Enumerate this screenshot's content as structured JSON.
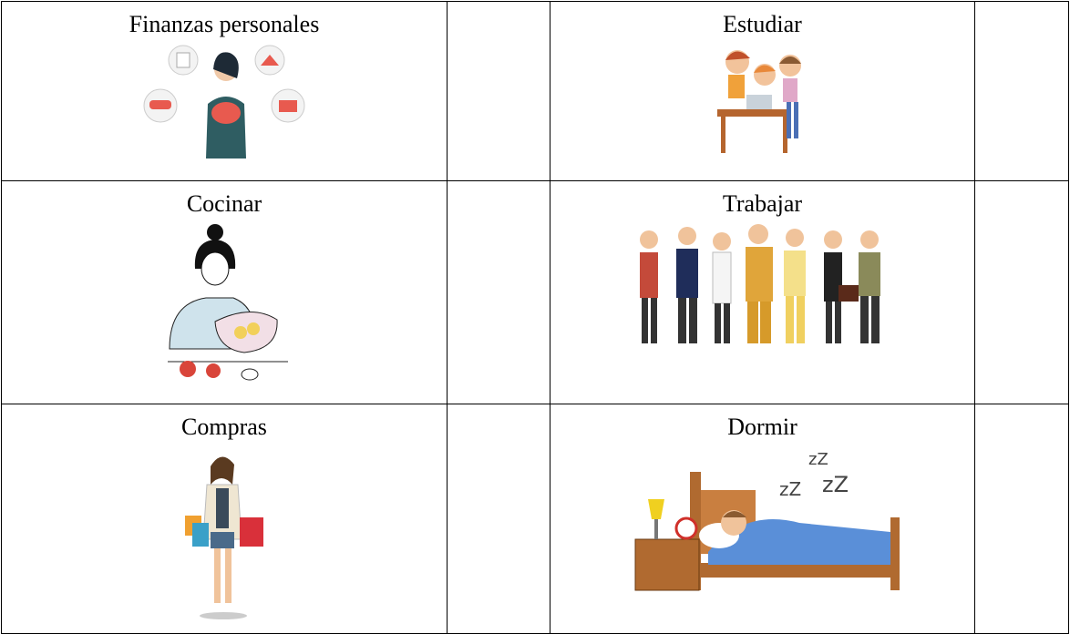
{
  "table": {
    "rows": [
      [
        "Finanzas personales",
        "Estudiar"
      ],
      [
        "Cocinar",
        "Trabajar"
      ],
      [
        "Compras",
        "Dormir"
      ]
    ]
  }
}
